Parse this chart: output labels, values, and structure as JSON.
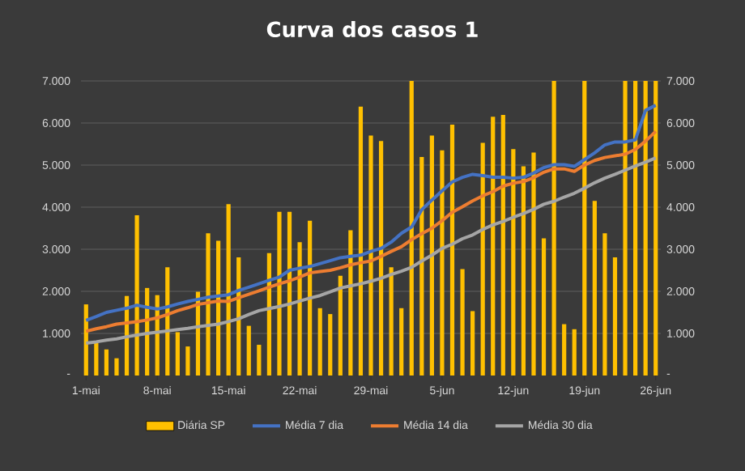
{
  "chart_data": {
    "type": "bar",
    "title": "Curva dos casos 1",
    "categories": [
      "1-mai",
      null,
      null,
      null,
      null,
      null,
      null,
      "8-mai",
      null,
      null,
      null,
      null,
      null,
      null,
      "15-mai",
      null,
      null,
      null,
      null,
      null,
      null,
      "22-mai",
      null,
      null,
      null,
      null,
      null,
      null,
      "29-mai",
      null,
      null,
      null,
      null,
      null,
      null,
      "5-jun",
      null,
      null,
      null,
      null,
      null,
      null,
      "12-jun",
      null,
      null,
      null,
      null,
      null,
      null,
      "19-jun",
      null,
      null,
      null,
      null,
      null,
      null,
      "26-jun"
    ],
    "series": [
      {
        "name": "Diária SP",
        "color": "#ffc000",
        "values": [
          1690,
          770,
          620,
          410,
          1890,
          3810,
          2080,
          1910,
          2570,
          1030,
          690,
          1990,
          3380,
          3200,
          4070,
          2810,
          1180,
          730,
          2910,
          3890,
          3890,
          3170,
          3680,
          1600,
          1460,
          2370,
          3450,
          6390,
          5700,
          5570,
          2570,
          1600,
          7000,
          5190,
          5700,
          5350,
          5960,
          2530,
          1530,
          5530,
          6150,
          6190,
          5380,
          4970,
          5300,
          3260,
          7000,
          1220,
          1100,
          7000,
          4150,
          3380,
          2810,
          7000,
          7000,
          7000,
          7000
        ]
      },
      {
        "name": "Média 7 dia",
        "type": "line",
        "color": "#4472c4",
        "values": [
          1310,
          1400,
          1500,
          1550,
          1600,
          1670,
          1620,
          1580,
          1630,
          1700,
          1760,
          1810,
          1860,
          1890,
          1920,
          2020,
          2100,
          2180,
          2260,
          2340,
          2500,
          2550,
          2590,
          2660,
          2730,
          2800,
          2830,
          2860,
          2950,
          3020,
          3170,
          3380,
          3530,
          3940,
          4170,
          4390,
          4600,
          4710,
          4780,
          4750,
          4710,
          4710,
          4690,
          4710,
          4810,
          4940,
          5010,
          5010,
          4970,
          5130,
          5290,
          5480,
          5550,
          5550,
          5600,
          6300,
          6420
        ]
      },
      {
        "name": "Média 14 dia",
        "type": "line",
        "color": "#ed7d31",
        "values": [
          1050,
          1110,
          1160,
          1220,
          1250,
          1280,
          1320,
          1370,
          1450,
          1540,
          1610,
          1690,
          1730,
          1770,
          1760,
          1850,
          1930,
          2010,
          2100,
          2180,
          2250,
          2340,
          2440,
          2470,
          2500,
          2560,
          2630,
          2680,
          2720,
          2830,
          2950,
          3060,
          3230,
          3370,
          3500,
          3680,
          3880,
          4010,
          4150,
          4270,
          4370,
          4500,
          4570,
          4610,
          4700,
          4830,
          4910,
          4910,
          4850,
          5000,
          5110,
          5180,
          5220,
          5260,
          5370,
          5570,
          5800
        ]
      },
      {
        "name": "Média 30 dia",
        "type": "line",
        "color": "#a5a5a5",
        "values": [
          770,
          800,
          840,
          870,
          920,
          960,
          1000,
          1030,
          1060,
          1090,
          1120,
          1160,
          1190,
          1220,
          1280,
          1350,
          1450,
          1540,
          1590,
          1640,
          1700,
          1770,
          1840,
          1900,
          1990,
          2080,
          2130,
          2180,
          2240,
          2310,
          2400,
          2480,
          2570,
          2720,
          2860,
          3020,
          3120,
          3250,
          3340,
          3470,
          3580,
          3660,
          3760,
          3850,
          3950,
          4070,
          4140,
          4240,
          4330,
          4450,
          4580,
          4690,
          4780,
          4880,
          4980,
          5070,
          5170
        ]
      }
    ],
    "ylim": [
      0,
      7000
    ],
    "yticks": [
      {
        "value": 0,
        "label": "-"
      },
      {
        "value": 1000,
        "label": "1.000"
      },
      {
        "value": 2000,
        "label": "2.000"
      },
      {
        "value": 3000,
        "label": "3.000"
      },
      {
        "value": 4000,
        "label": "4.000"
      },
      {
        "value": 5000,
        "label": "5.000"
      },
      {
        "value": 6000,
        "label": "6.000"
      },
      {
        "value": 7000,
        "label": "7.000"
      }
    ],
    "y2lim": [
      0,
      7000
    ],
    "y2ticks": [
      {
        "value": 0,
        "label": "-"
      },
      {
        "value": 1000,
        "label": "1.000"
      },
      {
        "value": 2000,
        "label": "2.000"
      },
      {
        "value": 3000,
        "label": "3.000"
      },
      {
        "value": 4000,
        "label": "4.000"
      },
      {
        "value": 5000,
        "label": "5.000"
      },
      {
        "value": 6000,
        "label": "6.000"
      },
      {
        "value": 7000,
        "label": "7.000"
      }
    ],
    "grid": "y",
    "legend": "bottom",
    "marker": "none",
    "line_style": "solid"
  }
}
